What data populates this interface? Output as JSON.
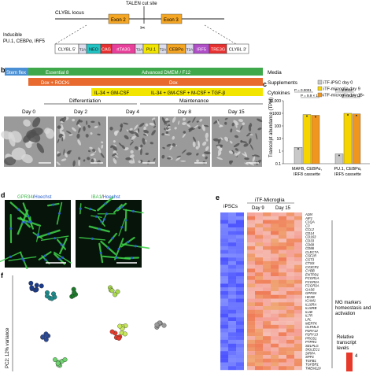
{
  "panel_a": {
    "locus_label": "CLYBL locus",
    "exon2": "Exon 2",
    "exon3": "Exon 3",
    "talen_label": "TALEN cut site",
    "inducible_line1": "Inducible",
    "inducible_line2": "PU.1, CEBPα, IRF5",
    "cassette": [
      "CLYBL 5'",
      "T2A",
      "NEO",
      "CAG",
      "rtTA3G",
      "T2A",
      "PU.1",
      "T2A",
      "CEBPα",
      "T2A",
      "IRF5",
      "TRE3G",
      "CLYBL 3'"
    ]
  },
  "panel_b": {
    "letter": "b",
    "media": {
      "label": "Media",
      "bars": [
        "Stem flex",
        "Essential 8",
        "Advanced DMEM / F12"
      ]
    },
    "supplements": {
      "label": "Supplements",
      "bars": [
        "Dox + ROCKi",
        "Dox"
      ]
    },
    "cytokines": {
      "label": "Cytokines",
      "bars": [
        "IL-34 + GM-CSF",
        "IL-34 + GM-CSF + M-CSF + TGF-β"
      ]
    },
    "phases": [
      "Differentiation",
      "Maintenance"
    ],
    "days": [
      "Day 0",
      "Day 2",
      "Day 4",
      "Day 8",
      "Day 15"
    ]
  },
  "panel_c": {
    "letter": "c",
    "chart_data": {
      "type": "bar",
      "ylabel": "Transcript abundance (TPM)",
      "yscale": "log",
      "ylim": [
        0.1,
        10000
      ],
      "yticks": [
        "10,000",
        "1000",
        "100",
        "10",
        "1",
        "0.1"
      ],
      "categories": [
        "MAFB, CEBPα, IRF8 cassette",
        "PU.1, CEBPα, IRF5 cassette"
      ],
      "series": [
        {
          "name": "iTF-iPSC day 0",
          "color": "#c8c8c8",
          "values": [
            2,
            0.6
          ]
        },
        {
          "name": "iTF-microglia day 9",
          "color": "#f5d400",
          "values": [
            800,
            1000
          ]
        },
        {
          "name": "iTF-microglia day 15",
          "color": "#f0961e",
          "values": [
            700,
            900
          ]
        }
      ],
      "legend": "top-right",
      "annotations": [
        {
          "text": "P = 0.0001",
          "group": 0
        },
        {
          "text": "P = 9.9 × 10⁻⁵",
          "group": 0
        },
        {
          "text": "P = 0.0002",
          "group": 1
        },
        {
          "text": "P = 5.1 × 10⁻⁵",
          "group": 1
        }
      ]
    }
  },
  "panel_d": {
    "letter": "d",
    "left_label_a": "GPR34",
    "left_label_b": "Hoechst",
    "right_label_a": "IBA1",
    "right_label_b": "Hoechst"
  },
  "panel_e": {
    "letter": "e",
    "col_group_1": "iPSCs",
    "col_group_2": "iTF-Microglia",
    "sub_day9": "Day 9",
    "sub_day15": "Day 15",
    "genes": [
      "A2M",
      "AIF1",
      "C1QA",
      "C3",
      "CCL2",
      "CD14",
      "CD163",
      "CD33",
      "CD68",
      "CD86",
      "CLEC7A",
      "CSF1R",
      "CST3",
      "CTSS",
      "CX3CR1",
      "CYBB",
      "ENTPD1",
      "FCGR1A",
      "FCGR2A",
      "FCGR3A",
      "GAS6",
      "GPR34",
      "HEXB",
      "ICAM1",
      "IL10RA",
      "IL10RB",
      "IL1B",
      "IL7R",
      "LPL",
      "MERTK",
      "OLFML3",
      "P2RY12",
      "P2RY13",
      "PROS1",
      "PTPRC",
      "SELPLG",
      "SIGLEC1",
      "SIRPA",
      "SPP1",
      "TGFB1",
      "TGFBR1",
      "TMEM119"
    ],
    "mg_label_line1": "MG markers",
    "mg_label_line2": "homeostasis and",
    "mg_label_line3": "activation",
    "scale_line1": "Relative",
    "scale_line2": "transcript",
    "scale_line3": "levels",
    "scale_max": "4"
  },
  "panel_f": {
    "letter": "f",
    "ylabel": "PC2: 12% variance"
  }
}
